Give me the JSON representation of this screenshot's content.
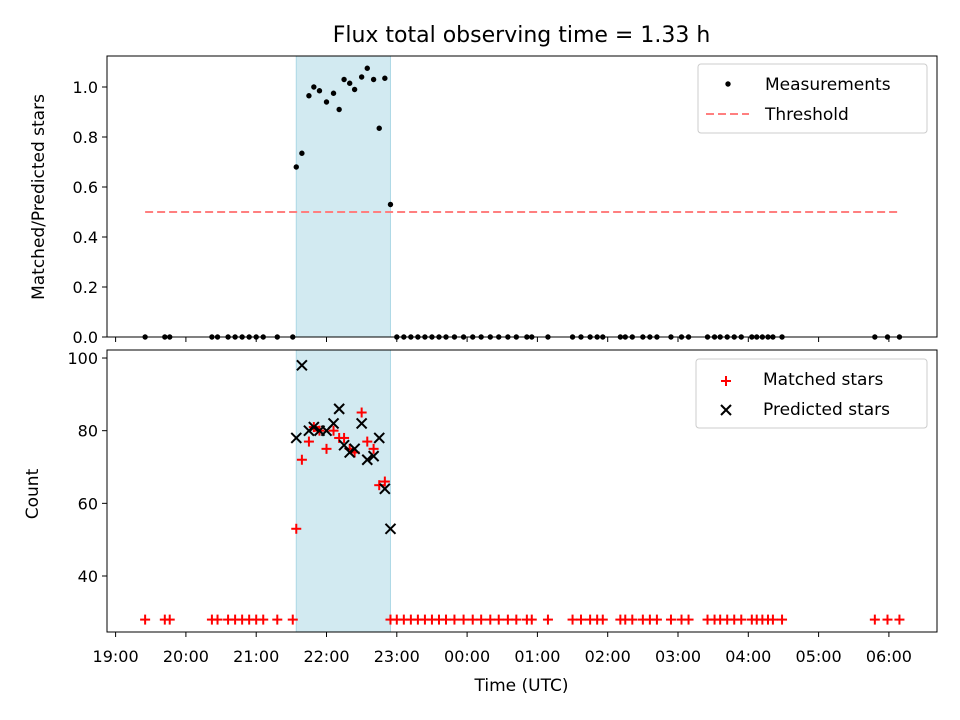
{
  "chart_data": [
    {
      "type": "scatter",
      "title": "Flux total observing time = 1.33 h",
      "xlabel": "",
      "ylabel": "Matched/Predicted stars",
      "ylim": [
        0,
        1.12
      ],
      "yticks": [
        "0.0",
        "0.2",
        "0.4",
        "0.6",
        "0.8",
        "1.0"
      ],
      "shaded_span_hours": [
        21.57,
        22.91
      ],
      "series": [
        {
          "name": "Measurements",
          "marker": "dot",
          "color": "#000000",
          "x": [
            19.42,
            19.7,
            19.77,
            20.37,
            20.45,
            20.6,
            20.7,
            20.8,
            20.9,
            21.0,
            21.1,
            21.3,
            21.52,
            21.57,
            21.65,
            21.75,
            21.82,
            21.9,
            22.0,
            22.1,
            22.18,
            22.25,
            22.33,
            22.4,
            22.5,
            22.58,
            22.67,
            22.75,
            22.83,
            22.91,
            23.0,
            23.1,
            23.2,
            23.3,
            23.4,
            23.5,
            23.6,
            23.7,
            23.82,
            23.95,
            24.08,
            24.2,
            24.33,
            24.45,
            24.58,
            24.7,
            24.85,
            24.92,
            25.15,
            25.5,
            25.62,
            25.75,
            25.85,
            25.93,
            26.18,
            26.25,
            26.35,
            26.5,
            26.6,
            26.7,
            26.9,
            27.05,
            27.15,
            27.42,
            27.52,
            27.6,
            27.7,
            27.8,
            27.9,
            28.05,
            28.12,
            28.2,
            28.28,
            28.35,
            28.48,
            29.8,
            29.98,
            30.15
          ],
          "y": [
            0,
            0,
            0,
            0,
            0,
            0,
            0,
            0,
            0,
            0,
            0,
            0,
            0,
            0.68,
            0.735,
            0.965,
            1.0,
            0.985,
            0.94,
            0.975,
            0.91,
            1.03,
            1.015,
            0.99,
            1.04,
            1.075,
            1.03,
            0.835,
            1.035,
            0.53,
            0,
            0,
            0,
            0,
            0,
            0,
            0,
            0,
            0,
            0,
            0,
            0,
            0,
            0,
            0,
            0,
            0,
            0,
            0,
            0,
            0,
            0,
            0,
            0,
            0,
            0,
            0,
            0,
            0,
            0,
            0,
            0,
            0,
            0,
            0,
            0,
            0,
            0,
            0,
            0,
            0,
            0,
            0,
            0,
            0,
            0,
            0,
            0
          ]
        },
        {
          "name": "Threshold",
          "style": "dashed",
          "color": "#ff7f7f",
          "x": [
            19.42,
            30.15
          ],
          "y": [
            0.5,
            0.5
          ]
        }
      ]
    },
    {
      "type": "scatter",
      "title": "",
      "xlabel": "Time (UTC)",
      "ylabel": "Count",
      "ylim": [
        25,
        101
      ],
      "yticks": [
        "40",
        "60",
        "80",
        "100"
      ],
      "xticks": [
        "19:00",
        "20:00",
        "21:00",
        "22:00",
        "23:00",
        "00:00",
        "01:00",
        "02:00",
        "03:00",
        "04:00",
        "05:00",
        "06:00"
      ],
      "xtick_hours": [
        19,
        20,
        21,
        22,
        23,
        24,
        25,
        26,
        27,
        28,
        29,
        30
      ],
      "shaded_span_hours": [
        21.57,
        22.91
      ],
      "series": [
        {
          "name": "Matched stars",
          "marker": "plus",
          "color": "#ff0000",
          "x": [
            19.42,
            19.7,
            19.77,
            20.37,
            20.45,
            20.6,
            20.7,
            20.8,
            20.9,
            21.0,
            21.1,
            21.3,
            21.52,
            21.57,
            21.65,
            21.75,
            21.82,
            21.9,
            22.0,
            22.1,
            22.18,
            22.25,
            22.33,
            22.4,
            22.5,
            22.58,
            22.67,
            22.75,
            22.83,
            22.91,
            23.0,
            23.1,
            23.2,
            23.3,
            23.4,
            23.5,
            23.6,
            23.7,
            23.82,
            23.95,
            24.08,
            24.2,
            24.33,
            24.45,
            24.58,
            24.7,
            24.85,
            24.92,
            25.15,
            25.5,
            25.62,
            25.75,
            25.85,
            25.93,
            26.18,
            26.25,
            26.35,
            26.5,
            26.6,
            26.7,
            26.9,
            27.05,
            27.15,
            27.42,
            27.52,
            27.6,
            27.7,
            27.8,
            27.9,
            28.05,
            28.12,
            28.2,
            28.28,
            28.35,
            28.48,
            29.8,
            29.98,
            30.15
          ],
          "y": [
            28,
            28,
            28,
            28,
            28,
            28,
            28,
            28,
            28,
            28,
            28,
            28,
            28,
            53,
            72,
            77,
            81,
            80,
            75,
            80,
            78,
            78,
            75,
            74,
            85,
            77,
            75,
            65,
            66,
            28,
            28,
            28,
            28,
            28,
            28,
            28,
            28,
            28,
            28,
            28,
            28,
            28,
            28,
            28,
            28,
            28,
            28,
            28,
            28,
            28,
            28,
            28,
            28,
            28,
            28,
            28,
            28,
            28,
            28,
            28,
            28,
            28,
            28,
            28,
            28,
            28,
            28,
            28,
            28,
            28,
            28,
            28,
            28,
            28,
            28,
            28,
            28,
            28
          ]
        },
        {
          "name": "Predicted stars",
          "marker": "x",
          "color": "#000000",
          "x": [
            21.57,
            21.65,
            21.75,
            21.82,
            21.9,
            22.0,
            22.1,
            22.18,
            22.25,
            22.33,
            22.4,
            22.5,
            22.58,
            22.67,
            22.75,
            22.83,
            22.91
          ],
          "y": [
            78,
            98,
            80,
            81,
            80,
            80,
            82,
            86,
            76,
            74,
            75,
            82,
            72,
            73,
            78,
            64,
            53
          ]
        }
      ]
    }
  ]
}
